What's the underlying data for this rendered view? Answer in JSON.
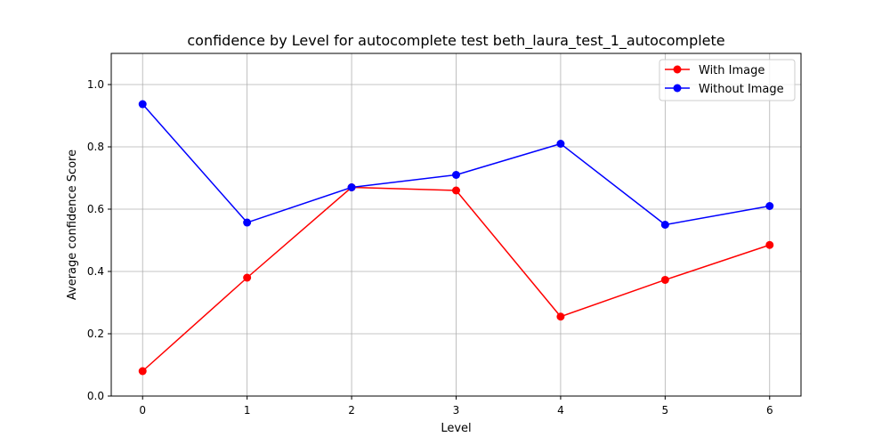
{
  "chart_data": {
    "type": "line",
    "title": "confidence by Level for autocomplete test beth_laura_test_1_autocomplete",
    "xlabel": "Level",
    "ylabel": "Average confidence Score",
    "x": [
      0,
      1,
      2,
      3,
      4,
      5,
      6
    ],
    "xticks": [
      "0",
      "1",
      "2",
      "3",
      "4",
      "5",
      "6"
    ],
    "xlim": [
      -0.3,
      6.3
    ],
    "yticks": [
      "0.0",
      "0.2",
      "0.4",
      "0.6",
      "0.8",
      "1.0"
    ],
    "ylim": [
      0.0,
      1.1
    ],
    "grid": true,
    "legend_position": "top-right",
    "series": [
      {
        "name": "With Image",
        "color": "#ff0000",
        "marker": "circle",
        "values": [
          0.08,
          0.38,
          0.67,
          0.66,
          0.255,
          0.373,
          0.485
        ]
      },
      {
        "name": "Without Image",
        "color": "#0000ff",
        "marker": "circle",
        "values": [
          0.937,
          0.557,
          0.67,
          0.71,
          0.81,
          0.55,
          0.61
        ]
      }
    ]
  }
}
